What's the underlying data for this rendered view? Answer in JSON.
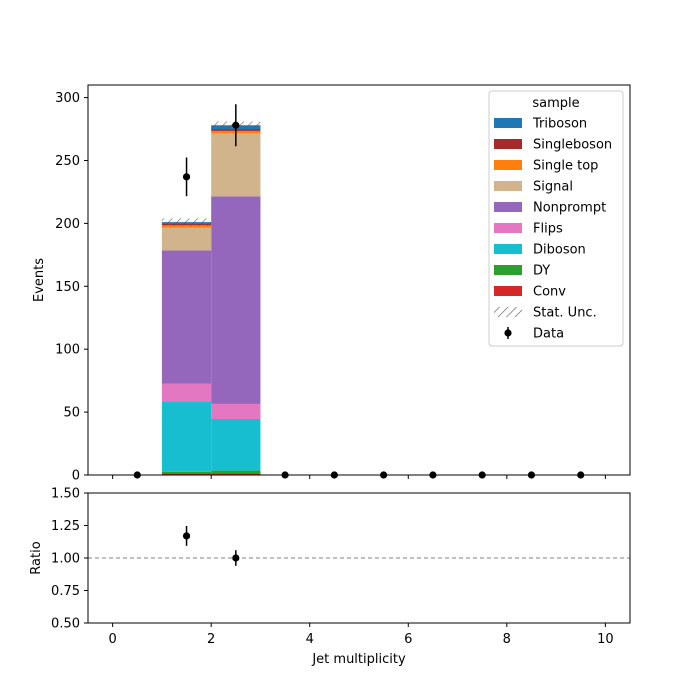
{
  "chart_data": [
    {
      "type": "bar",
      "stacked": true,
      "xlabel": "",
      "ylabel": "Events",
      "xlim": [
        -0.5,
        10.5
      ],
      "ylim": [
        0,
        310
      ],
      "yticks": [
        0,
        50,
        100,
        150,
        200,
        250,
        300
      ],
      "bin_edges": [
        0,
        1,
        2,
        3,
        4,
        5,
        6,
        7,
        8,
        9,
        10
      ],
      "series": [
        {
          "name": "Conv",
          "color": "#d62728",
          "values": [
            0,
            1.5,
            1.5,
            0,
            0,
            0,
            0,
            0,
            0,
            0
          ]
        },
        {
          "name": "DY",
          "color": "#2ca02c",
          "values": [
            0,
            1,
            2,
            0,
            0,
            0,
            0,
            0,
            0,
            0
          ]
        },
        {
          "name": "Diboson",
          "color": "#17becf",
          "values": [
            0,
            56,
            41,
            0,
            0,
            0,
            0,
            0,
            0,
            0
          ]
        },
        {
          "name": "Flips",
          "color": "#e377c2",
          "values": [
            0,
            14,
            12,
            0,
            0,
            0,
            0,
            0,
            0,
            0
          ]
        },
        {
          "name": "Nonprompt",
          "color": "#9467bd",
          "values": [
            0,
            106,
            165,
            0,
            0,
            0,
            0,
            0,
            0,
            0
          ]
        },
        {
          "name": "Signal",
          "color": "#d2b48c",
          "values": [
            0,
            18,
            50,
            0,
            0,
            0,
            0,
            0,
            0,
            0
          ]
        },
        {
          "name": "Single top",
          "color": "#ff7f0e",
          "values": [
            0,
            2,
            2,
            0,
            0,
            0,
            0,
            0,
            0,
            0
          ]
        },
        {
          "name": "Singleboson",
          "color": "#a52a2a",
          "values": [
            0,
            1.5,
            1.5,
            0,
            0,
            0,
            0,
            0,
            0,
            0
          ]
        },
        {
          "name": "Triboson",
          "color": "#1f77b4",
          "values": [
            0,
            1,
            3,
            0,
            0,
            0,
            0,
            0,
            0,
            0
          ]
        }
      ],
      "stat_unc": {
        "name": "Stat. Unc.",
        "half_width": [
          0,
          3,
          3,
          0,
          0,
          0,
          0,
          0,
          0,
          0
        ]
      },
      "data": {
        "name": "Data",
        "x": [
          0.5,
          1.5,
          2.5,
          3.5,
          4.5,
          5.5,
          6.5,
          7.5,
          8.5,
          9.5
        ],
        "y": [
          0,
          237,
          278,
          0,
          0,
          0,
          0,
          0,
          0,
          0
        ],
        "yerr": [
          0,
          15.4,
          16.7,
          0,
          0,
          0,
          0,
          0,
          0,
          0
        ]
      },
      "legend": {
        "title": "sample",
        "placement": "top-right",
        "entries": [
          "Triboson",
          "Singleboson",
          "Single top",
          "Signal",
          "Nonprompt",
          "Flips",
          "Diboson",
          "DY",
          "Conv",
          "Stat. Unc.",
          "Data"
        ]
      }
    },
    {
      "type": "scatter",
      "xlabel": "Jet multiplicity",
      "ylabel": "Ratio",
      "xlim": [
        -0.5,
        10.5
      ],
      "ylim": [
        0.5,
        1.5
      ],
      "xticks": [
        0,
        2,
        4,
        6,
        8,
        10
      ],
      "yticks": [
        "0.50",
        "0.75",
        "1.00",
        "1.25",
        "1.50"
      ],
      "reference_line": 1.0,
      "points": [
        {
          "x": 1.5,
          "y": 1.17,
          "yerr": 0.076
        },
        {
          "x": 2.5,
          "y": 1.0,
          "yerr": 0.06
        }
      ]
    }
  ]
}
